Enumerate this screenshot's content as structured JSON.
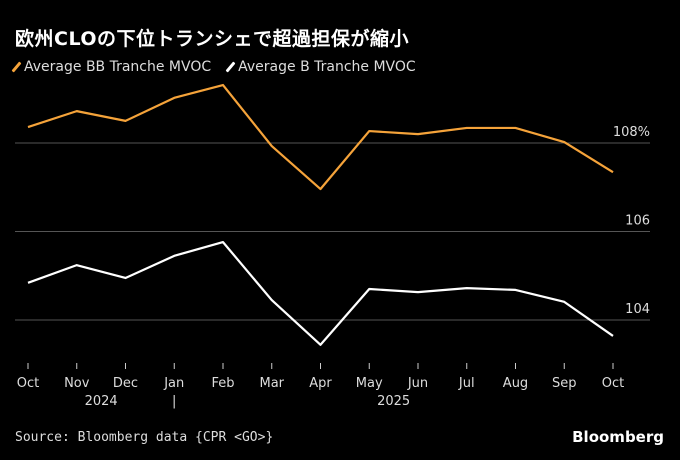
{
  "chart_data": {
    "type": "line",
    "title": "欧州CLOの下位トランシェで超過担保が縮小",
    "x": [
      "Oct",
      "Nov",
      "Dec",
      "Jan",
      "Feb",
      "Mar",
      "Apr",
      "May",
      "Jun",
      "Jul",
      "Aug",
      "Sep",
      "Oct"
    ],
    "year_labels": [
      "2024",
      "2025"
    ],
    "year_divider": "|",
    "series": [
      {
        "name": "Average BB Tranche MVOC",
        "color": "#f5a33a",
        "values": [
          108.36,
          108.72,
          108.5,
          109.02,
          109.31,
          107.93,
          106.96,
          108.27,
          108.2,
          108.34,
          108.34,
          108.02,
          107.34
        ]
      },
      {
        "name": "Average B Tranche MVOC",
        "color": "#ffffff",
        "values": [
          104.84,
          105.24,
          104.95,
          105.45,
          105.76,
          104.45,
          103.44,
          104.7,
          104.63,
          104.72,
          104.68,
          104.41,
          103.64
        ]
      }
    ],
    "yticks": [
      104,
      106,
      108
    ],
    "ytick_labels": [
      "104",
      "106",
      "108%"
    ],
    "ylim": [
      103.0,
      109.6
    ],
    "grid": true,
    "legend_placement": "top-left"
  },
  "source": "Source: Bloomberg data {CPR <GO>}",
  "brand": "Bloomberg"
}
